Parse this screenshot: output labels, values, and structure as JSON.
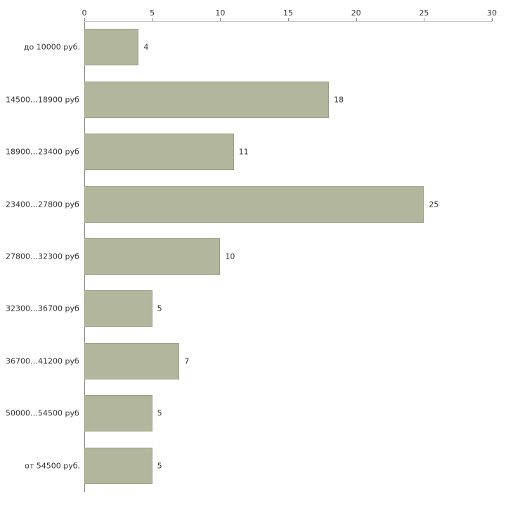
{
  "chart_data": {
    "type": "bar",
    "orientation": "horizontal",
    "title": "",
    "xlabel": "",
    "ylabel": "",
    "categories": [
      "до 10000 руб.",
      "14500…18900 руб.",
      "18900…23400 руб.",
      "23400…27800 руб.",
      "27800…32300 руб.",
      "32300…36700 руб.",
      "36700…41200 руб.",
      "50000…54500 руб.",
      "от 54500 руб."
    ],
    "values": [
      4,
      18,
      11,
      25,
      10,
      5,
      7,
      5,
      5
    ],
    "value_labels": [
      "4",
      "18",
      "11",
      "25",
      "10",
      "5",
      "7",
      "5",
      "5"
    ],
    "xlim": [
      0,
      30
    ],
    "xticks": [
      0,
      5,
      10,
      15,
      20,
      25,
      30
    ],
    "grid": false,
    "legend": false,
    "ticks_position": "top",
    "bar_color": "#b1b69c",
    "bar_border_color": "#9aa084",
    "axis_color": "#808080",
    "text_color": "#333333",
    "background_color": "#ffffff"
  }
}
